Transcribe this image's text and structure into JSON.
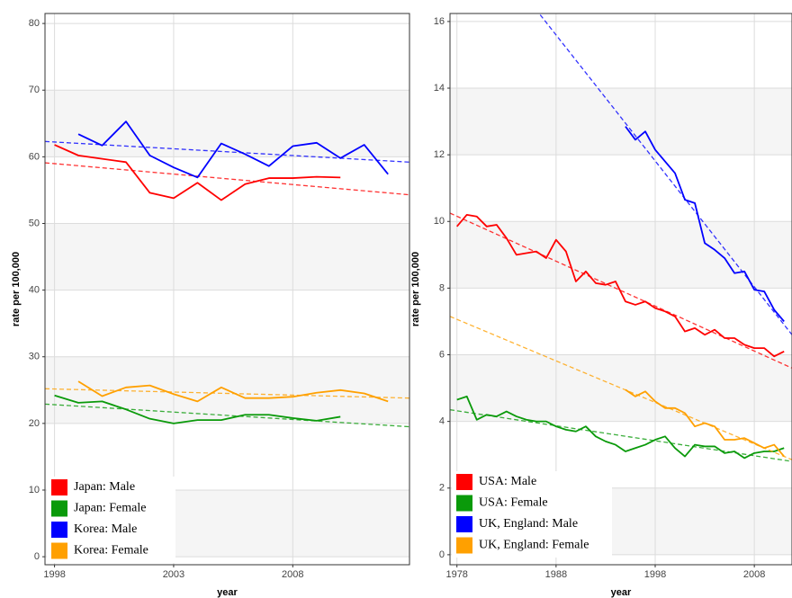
{
  "chart_data": [
    {
      "type": "line",
      "xlabel": "year",
      "ylabel": "rate per 100,000",
      "xlim": [
        1997.6,
        2012.9
      ],
      "ylim": [
        -1.2,
        81.5
      ],
      "xticks": [
        1998,
        2003,
        2008
      ],
      "yticks": [
        0,
        10,
        20,
        30,
        40,
        50,
        60,
        70,
        80
      ],
      "grid": true,
      "legend": "bottom-left",
      "series": [
        {
          "name": "Japan: Male",
          "color": "#ff0000",
          "x": [
            1998,
            1999,
            2000,
            2001,
            2002,
            2003,
            2004,
            2005,
            2006,
            2007,
            2008,
            2009,
            2010
          ],
          "values": [
            61.8,
            60.2,
            59.7,
            59.2,
            54.6,
            53.8,
            56.1,
            53.5,
            55.9,
            56.8,
            56.8,
            57.0,
            56.9
          ],
          "trend": {
            "x": [
              1997.6,
              2012.9
            ],
            "values": [
              59.1,
              54.3
            ]
          }
        },
        {
          "name": "Japan: Female",
          "color": "#0a9a0a",
          "x": [
            1998,
            1999,
            2000,
            2001,
            2002,
            2003,
            2004,
            2005,
            2006,
            2007,
            2008,
            2009,
            2010
          ],
          "values": [
            24.2,
            23.1,
            23.3,
            22.1,
            20.7,
            20.0,
            20.5,
            20.5,
            21.3,
            21.3,
            20.8,
            20.4,
            21.0
          ],
          "trend": {
            "x": [
              1997.6,
              2012.9
            ],
            "values": [
              22.9,
              19.5
            ]
          }
        },
        {
          "name": "Korea: Male",
          "color": "#0000ff",
          "x": [
            1999,
            2000,
            2001,
            2002,
            2003,
            2004,
            2005,
            2006,
            2007,
            2008,
            2009,
            2010,
            2011,
            2012
          ],
          "values": [
            63.4,
            61.7,
            65.3,
            60.2,
            58.4,
            56.9,
            62.0,
            60.4,
            58.6,
            61.6,
            62.1,
            59.8,
            61.8,
            57.4
          ],
          "trend": {
            "x": [
              1997.6,
              2012.9
            ],
            "values": [
              62.3,
              59.2
            ]
          }
        },
        {
          "name": "Korea: Female",
          "color": "#ffa000",
          "x": [
            1999,
            2000,
            2001,
            2002,
            2003,
            2004,
            2005,
            2006,
            2007,
            2008,
            2009,
            2010,
            2011,
            2012
          ],
          "values": [
            26.3,
            24.1,
            25.4,
            25.7,
            24.4,
            23.3,
            25.4,
            23.8,
            23.8,
            24.0,
            24.6,
            25.0,
            24.5,
            23.3
          ],
          "trend": {
            "x": [
              1997.6,
              2012.9
            ],
            "values": [
              25.2,
              23.8
            ]
          }
        }
      ]
    },
    {
      "type": "line",
      "xlabel": "year",
      "ylabel": "rate per 100,000",
      "xlim": [
        1977.3,
        2011.8
      ],
      "ylim": [
        -0.3,
        16.24
      ],
      "xticks": [
        1978,
        1988,
        1998,
        2008
      ],
      "yticks": [
        0,
        2,
        4,
        6,
        8,
        10,
        12,
        14,
        16
      ],
      "grid": true,
      "legend": "bottom-left",
      "series": [
        {
          "name": "USA: Male",
          "color": "#ff0000",
          "x": [
            1978,
            1979,
            1980,
            1981,
            1982,
            1983,
            1984,
            1985,
            1986,
            1987,
            1988,
            1989,
            1990,
            1991,
            1992,
            1993,
            1994,
            1995,
            1996,
            1997,
            1998,
            1999,
            2000,
            2001,
            2002,
            2003,
            2004,
            2005,
            2006,
            2007,
            2008,
            2009,
            2010,
            2011
          ],
          "values": [
            9.85,
            10.2,
            10.15,
            9.85,
            9.9,
            9.5,
            9.0,
            9.05,
            9.1,
            8.9,
            9.45,
            9.1,
            8.2,
            8.5,
            8.15,
            8.1,
            8.2,
            7.6,
            7.5,
            7.6,
            7.4,
            7.3,
            7.15,
            6.7,
            6.8,
            6.6,
            6.75,
            6.5,
            6.5,
            6.3,
            6.2,
            6.2,
            5.95,
            6.1
          ],
          "trend": {
            "x": [
              1977.3,
              2011.8
            ],
            "values": [
              10.25,
              5.6
            ]
          }
        },
        {
          "name": "USA: Female",
          "color": "#0a9a0a",
          "x": [
            1978,
            1979,
            1980,
            1981,
            1982,
            1983,
            1984,
            1985,
            1986,
            1987,
            1988,
            1989,
            1990,
            1991,
            1992,
            1993,
            1994,
            1995,
            1996,
            1997,
            1998,
            1999,
            2000,
            2001,
            2002,
            2003,
            2004,
            2005,
            2006,
            2007,
            2008,
            2009,
            2010,
            2011
          ],
          "values": [
            4.65,
            4.75,
            4.05,
            4.2,
            4.15,
            4.3,
            4.15,
            4.05,
            4.0,
            4.0,
            3.85,
            3.75,
            3.7,
            3.85,
            3.55,
            3.4,
            3.3,
            3.1,
            3.2,
            3.3,
            3.45,
            3.55,
            3.2,
            2.95,
            3.3,
            3.25,
            3.25,
            3.05,
            3.1,
            2.9,
            3.05,
            3.1,
            3.1,
            3.2
          ],
          "trend": {
            "x": [
              1977.3,
              2011.8
            ],
            "values": [
              4.35,
              2.8
            ]
          }
        },
        {
          "name": "UK, England: Male",
          "color": "#0000ff",
          "x": [
            1995,
            1996,
            1997,
            1998,
            1999,
            2000,
            2001,
            2002,
            2003,
            2004,
            2005,
            2006,
            2007,
            2008,
            2009,
            2010,
            2011
          ],
          "values": [
            12.85,
            12.45,
            12.7,
            12.15,
            11.8,
            11.45,
            10.65,
            10.55,
            9.35,
            9.15,
            8.9,
            8.45,
            8.5,
            7.95,
            7.9,
            7.35,
            7.0
          ],
          "trend": {
            "x": [
              1986.4,
              2011.8
            ],
            "values": [
              16.2,
              6.6
            ]
          }
        },
        {
          "name": "UK, England: Female",
          "color": "#ffa000",
          "x": [
            1995,
            1996,
            1997,
            1998,
            1999,
            2000,
            2001,
            2002,
            2003,
            2004,
            2005,
            2006,
            2007,
            2008,
            2009,
            2010,
            2011
          ],
          "values": [
            4.95,
            4.75,
            4.9,
            4.6,
            4.4,
            4.4,
            4.25,
            3.85,
            3.95,
            3.85,
            3.45,
            3.45,
            3.5,
            3.35,
            3.2,
            3.3,
            2.95
          ],
          "trend": {
            "x": [
              1977.3,
              2011.8
            ],
            "values": [
              7.15,
              2.85
            ]
          }
        }
      ]
    }
  ]
}
